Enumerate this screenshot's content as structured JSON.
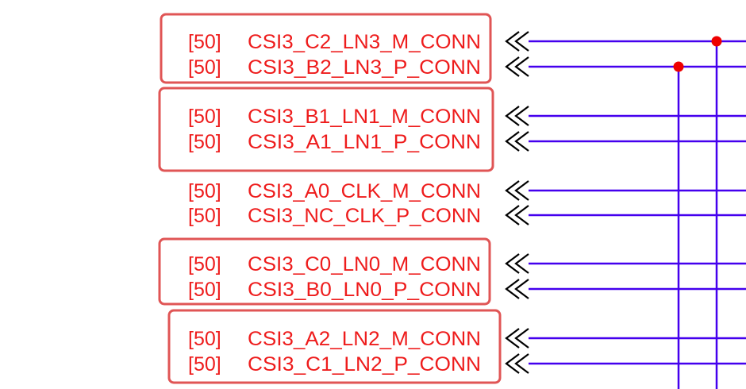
{
  "colors": {
    "label_text": "#ee1c1c",
    "group_box": "#e05555",
    "wire": "#4400ee",
    "junction": "#ee0000",
    "connector": "#000000"
  },
  "nets": [
    {
      "ref": "[50]",
      "name": "CSI3_C2_LN3_M_CONN",
      "junction": true
    },
    {
      "ref": "[50]",
      "name": "CSI3_B2_LN3_P_CONN",
      "junction": true
    },
    {
      "ref": "[50]",
      "name": "CSI3_B1_LN1_M_CONN",
      "junction": false
    },
    {
      "ref": "[50]",
      "name": "CSI3_A1_LN1_P_CONN",
      "junction": false
    },
    {
      "ref": "[50]",
      "name": "CSI3_A0_CLK_M_CONN",
      "junction": false
    },
    {
      "ref": "[50]",
      "name": "CSI3_NC_CLK_P_CONN",
      "junction": false
    },
    {
      "ref": "[50]",
      "name": "CSI3_C0_LN0_M_CONN",
      "junction": false
    },
    {
      "ref": "[50]",
      "name": "CSI3_B0_LN0_P_CONN",
      "junction": false
    },
    {
      "ref": "[50]",
      "name": "CSI3_A2_LN2_M_CONN",
      "junction": false
    },
    {
      "ref": "[50]",
      "name": "CSI3_C1_LN2_P_CONN",
      "junction": false
    }
  ]
}
